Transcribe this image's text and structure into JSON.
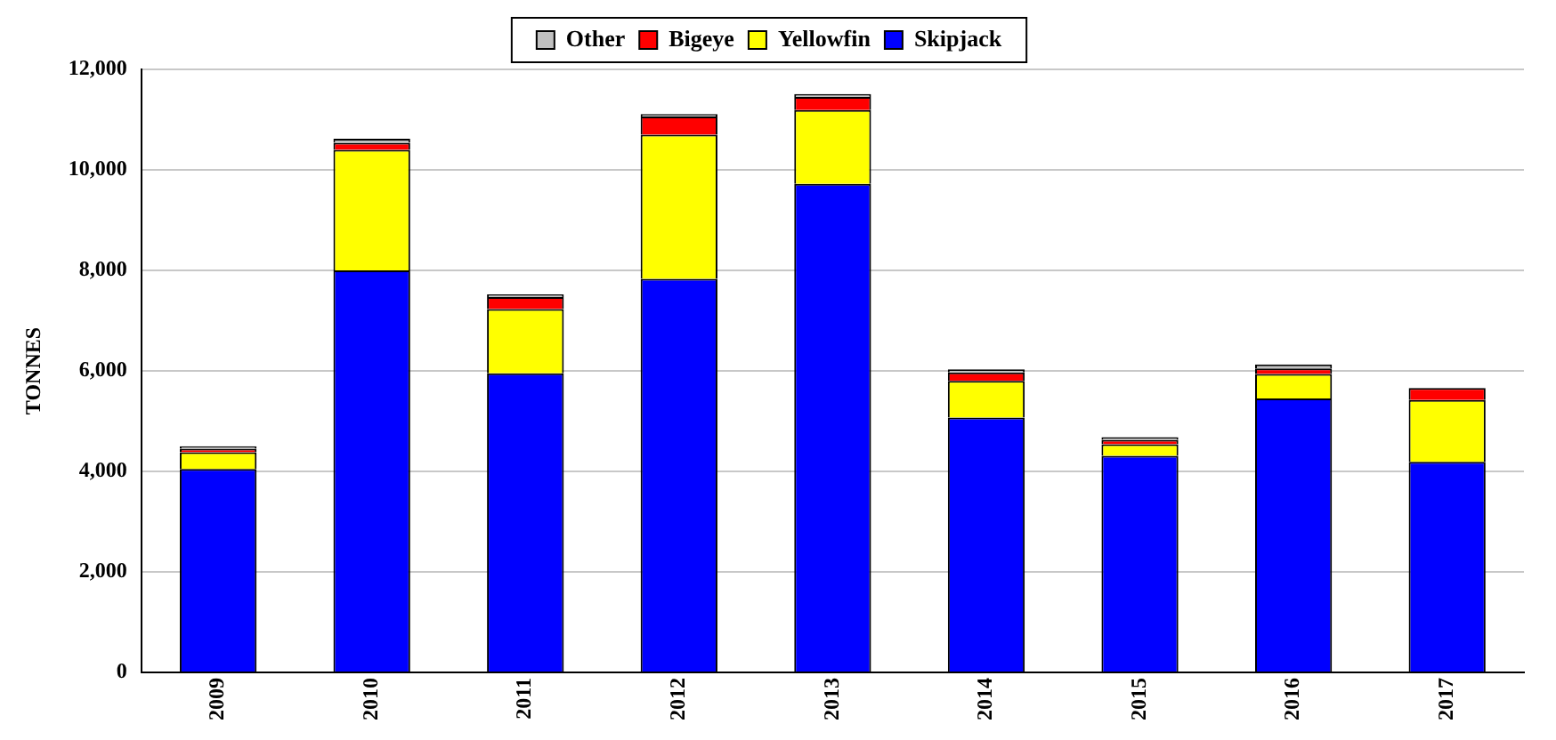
{
  "chart_data": {
    "type": "bar",
    "stacked": true,
    "ylabel": "TONNES",
    "categories": [
      "2009",
      "2010",
      "2011",
      "2012",
      "2013",
      "2014",
      "2015",
      "2016",
      "2017"
    ],
    "series": [
      {
        "name": "Skipjack",
        "color": "#0000ff",
        "values": [
          4050,
          8000,
          5950,
          7830,
          9720,
          5070,
          4310,
          5450,
          4190
        ]
      },
      {
        "name": "Yellowfin",
        "color": "#ffff00",
        "values": [
          330,
          2400,
          1280,
          2870,
          1470,
          730,
          230,
          490,
          1230
        ]
      },
      {
        "name": "Bigeye",
        "color": "#ff0000",
        "values": [
          70,
          140,
          240,
          360,
          260,
          170,
          90,
          110,
          240
        ]
      },
      {
        "name": "Other",
        "color": "#c0c0c0",
        "values": [
          50,
          80,
          50,
          50,
          60,
          60,
          50,
          80,
          0
        ]
      }
    ],
    "ylim": [
      0,
      12000
    ],
    "yticks": [
      0,
      {
        "value": 2000,
        "label": "2,000"
      },
      {
        "value": 4000,
        "label": "4,000"
      },
      {
        "value": 6000,
        "label": "6,000"
      },
      {
        "value": 8000,
        "label": "8,000"
      },
      {
        "value": 10000,
        "label": "10,000"
      },
      {
        "value": 12000,
        "label": "12,000"
      }
    ],
    "grid": "y",
    "legend": "top"
  }
}
